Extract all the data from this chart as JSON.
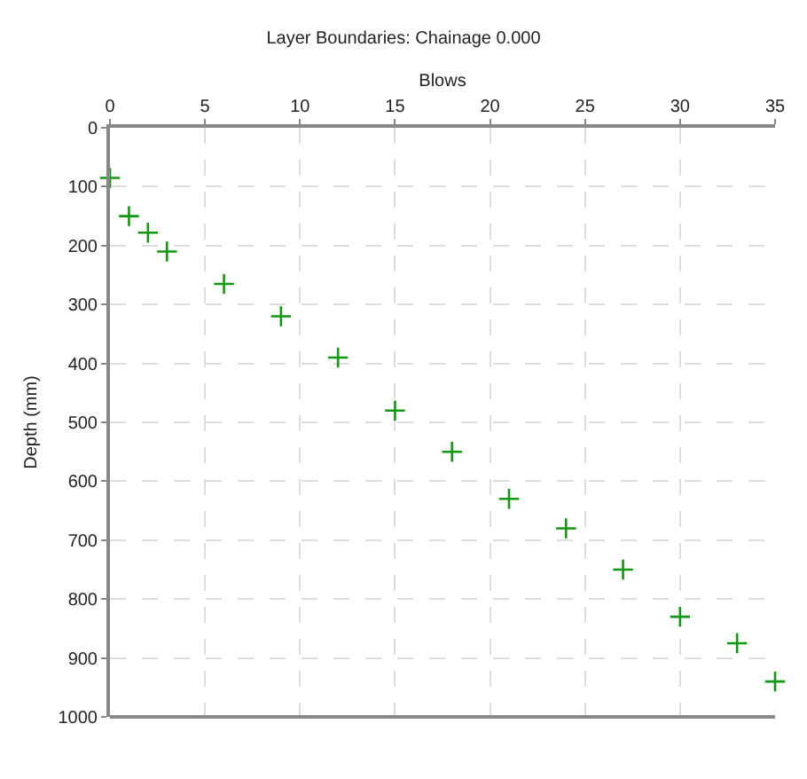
{
  "chart_data": {
    "type": "scatter",
    "title": "Layer Boundaries: Chainage 0.000",
    "xlabel": "Blows",
    "ylabel": "Depth (mm)",
    "x": [
      0,
      1,
      2,
      3,
      6,
      9,
      12,
      15,
      18,
      21,
      24,
      27,
      30,
      33,
      35
    ],
    "series": [
      {
        "color": "#109910",
        "values": [
          85,
          150,
          178,
          210,
          265,
          320,
          390,
          480,
          550,
          630,
          680,
          750,
          830,
          875,
          940
        ]
      }
    ],
    "xlim": [
      0,
      35
    ],
    "xticks": [
      0,
      5,
      10,
      15,
      20,
      25,
      30,
      35
    ],
    "ylim": [
      1000,
      0
    ],
    "yticks": [
      0,
      100,
      200,
      300,
      400,
      500,
      600,
      700,
      800,
      900,
      1000
    ],
    "grid": true,
    "marker": "cross"
  }
}
